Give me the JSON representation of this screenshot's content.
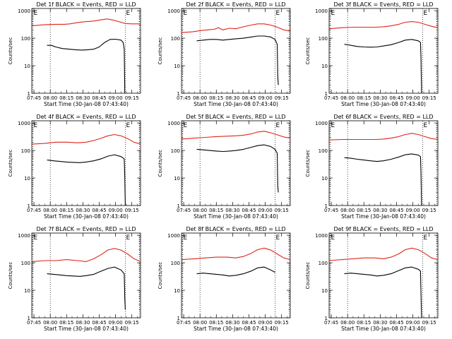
{
  "colors": {
    "events": "#000000",
    "lld": "#e0241b",
    "axes": "#000000"
  },
  "common": {
    "xlabel": "Start Time (30-Jan-08 07:43:40)",
    "ylabel": "Counts/sec",
    "x_ticks": [
      "07:45",
      "08:00",
      "08:15",
      "08:30",
      "08:45",
      "09:00",
      "09:15"
    ],
    "y_ticks": [
      "1",
      "10",
      "100",
      "1000"
    ],
    "xlim_minutes_after_0745": [
      -2,
      98
    ],
    "ylim": [
      1,
      1200
    ],
    "yscale": "log",
    "marker_label": "E",
    "dotted_lines_minutes_after_0745": [
      -1,
      15,
      84,
      97
    ]
  },
  "chart_data": [
    {
      "type": "line",
      "title": "Det 1f BLACK = Events, RED = LLD",
      "x_unit": "minutes after 07:45",
      "series": [
        {
          "color": "red",
          "x": [
            -2,
            10,
            20,
            28,
            33,
            40,
            48,
            55,
            62,
            67,
            72,
            78,
            84,
            90,
            98
          ],
          "values": [
            280,
            310,
            320,
            320,
            330,
            370,
            400,
            420,
            470,
            500,
            460,
            400,
            340,
            330,
            330
          ]
        },
        {
          "color": "black",
          "x": [
            12,
            16,
            20,
            26,
            32,
            38,
            44,
            50,
            55,
            60,
            65,
            70,
            75,
            80,
            82,
            83,
            83.5
          ],
          "values": [
            55,
            55,
            48,
            42,
            40,
            38,
            37,
            38,
            40,
            48,
            70,
            90,
            92,
            85,
            70,
            40,
            1
          ]
        }
      ]
    },
    {
      "type": "line",
      "title": "Det 2f BLACK = Events, RED = LLD",
      "x_unit": "minutes after 07:45",
      "series": [
        {
          "color": "red",
          "x": [
            -2,
            8,
            16,
            22,
            28,
            32,
            36,
            42,
            48,
            55,
            62,
            68,
            74,
            80,
            86,
            92,
            98
          ],
          "values": [
            160,
            170,
            190,
            200,
            210,
            240,
            200,
            230,
            220,
            260,
            300,
            330,
            330,
            300,
            250,
            200,
            180
          ]
        },
        {
          "color": "black",
          "x": [
            12,
            18,
            24,
            30,
            36,
            42,
            48,
            55,
            62,
            68,
            74,
            80,
            84,
            86,
            86.5,
            87
          ],
          "values": [
            80,
            85,
            90,
            90,
            85,
            90,
            95,
            100,
            110,
            120,
            120,
            110,
            90,
            60,
            4,
            2
          ]
        }
      ]
    },
    {
      "type": "line",
      "title": "Det 3f BLACK = Events, RED = LLD",
      "x_unit": "minutes after 07:45",
      "series": [
        {
          "color": "red",
          "x": [
            -2,
            10,
            20,
            30,
            40,
            48,
            55,
            62,
            68,
            74,
            80,
            86,
            92,
            98
          ],
          "values": [
            220,
            240,
            250,
            250,
            250,
            260,
            280,
            320,
            380,
            400,
            380,
            320,
            270,
            240
          ]
        },
        {
          "color": "black",
          "x": [
            12,
            18,
            24,
            30,
            36,
            42,
            48,
            55,
            62,
            68,
            74,
            80,
            82,
            82.5,
            83
          ],
          "values": [
            60,
            55,
            50,
            48,
            47,
            48,
            52,
            58,
            70,
            85,
            90,
            80,
            70,
            20,
            1
          ]
        }
      ]
    },
    {
      "type": "line",
      "title": "Det 4f BLACK = Events, RED = LLD",
      "x_unit": "minutes after 07:45",
      "series": [
        {
          "color": "red",
          "x": [
            -2,
            10,
            20,
            30,
            40,
            48,
            55,
            62,
            68,
            74,
            80,
            86,
            92,
            98
          ],
          "values": [
            170,
            180,
            200,
            200,
            190,
            200,
            230,
            280,
            340,
            380,
            340,
            270,
            200,
            170
          ]
        },
        {
          "color": "black",
          "x": [
            12,
            18,
            24,
            30,
            36,
            42,
            48,
            55,
            62,
            68,
            74,
            80,
            83,
            83.5,
            84
          ],
          "values": [
            45,
            42,
            40,
            38,
            37,
            36,
            38,
            42,
            50,
            62,
            70,
            60,
            50,
            10,
            1
          ]
        }
      ]
    },
    {
      "type": "line",
      "title": "Det 5f BLACK = Events, RED = LLD",
      "x_unit": "minutes after 07:45",
      "series": [
        {
          "color": "red",
          "x": [
            -2,
            10,
            20,
            30,
            40,
            48,
            55,
            62,
            68,
            74,
            80,
            86,
            92,
            98
          ],
          "values": [
            260,
            280,
            300,
            320,
            330,
            340,
            360,
            400,
            470,
            500,
            440,
            370,
            310,
            280
          ]
        },
        {
          "color": "black",
          "x": [
            12,
            18,
            24,
            30,
            36,
            42,
            48,
            55,
            62,
            68,
            74,
            80,
            84,
            86,
            86.5,
            87
          ],
          "values": [
            110,
            105,
            100,
            95,
            92,
            95,
            100,
            110,
            130,
            150,
            160,
            140,
            110,
            80,
            5,
            3
          ]
        }
      ]
    },
    {
      "type": "line",
      "title": "Det 6f BLACK = Events, RED = LLD",
      "x_unit": "minutes after 07:45",
      "series": [
        {
          "color": "red",
          "x": [
            -2,
            10,
            20,
            30,
            40,
            48,
            55,
            62,
            68,
            74,
            80,
            86,
            92,
            98
          ],
          "values": [
            240,
            250,
            250,
            250,
            250,
            260,
            280,
            320,
            380,
            420,
            380,
            320,
            270,
            250
          ]
        },
        {
          "color": "black",
          "x": [
            12,
            18,
            24,
            30,
            36,
            42,
            48,
            55,
            62,
            68,
            74,
            80,
            82,
            82.5,
            83
          ],
          "values": [
            55,
            52,
            48,
            45,
            42,
            40,
            42,
            48,
            58,
            70,
            75,
            68,
            60,
            15,
            1
          ]
        }
      ]
    },
    {
      "type": "line",
      "title": "Det 7f BLACK = Events, RED = LLD",
      "x_unit": "minutes after 07:45",
      "series": [
        {
          "color": "red",
          "x": [
            -2,
            10,
            20,
            30,
            40,
            48,
            55,
            62,
            68,
            74,
            80,
            86,
            92,
            98
          ],
          "values": [
            110,
            120,
            120,
            130,
            120,
            110,
            140,
            200,
            290,
            330,
            290,
            210,
            140,
            110
          ]
        },
        {
          "color": "black",
          "x": [
            12,
            18,
            24,
            30,
            36,
            42,
            48,
            55,
            62,
            68,
            74,
            80,
            83,
            83.5,
            84
          ],
          "values": [
            40,
            38,
            36,
            34,
            33,
            32,
            34,
            38,
            50,
            62,
            70,
            55,
            40,
            5,
            2
          ]
        }
      ]
    },
    {
      "type": "line",
      "title": "Det 8f BLACK = Events, RED = LLD",
      "x_unit": "minutes after 07:45",
      "series": [
        {
          "color": "red",
          "x": [
            -2,
            10,
            20,
            30,
            40,
            48,
            55,
            62,
            68,
            74,
            80,
            86,
            92,
            98
          ],
          "values": [
            130,
            140,
            150,
            160,
            160,
            150,
            170,
            220,
            300,
            340,
            290,
            210,
            150,
            130
          ]
        },
        {
          "color": "black",
          "x": [
            12,
            18,
            24,
            30,
            36,
            42,
            48,
            55,
            62,
            68,
            74,
            80,
            84
          ],
          "values": [
            40,
            42,
            40,
            38,
            36,
            33,
            35,
            40,
            50,
            65,
            70,
            55,
            45
          ]
        }
      ]
    },
    {
      "type": "line",
      "title": "Det 9f BLACK = Events, RED = LLD",
      "x_unit": "minutes after 07:45",
      "series": [
        {
          "color": "red",
          "x": [
            -2,
            10,
            20,
            30,
            40,
            48,
            55,
            62,
            68,
            74,
            80,
            86,
            92,
            98
          ],
          "values": [
            120,
            130,
            140,
            150,
            150,
            140,
            160,
            210,
            300,
            340,
            300,
            220,
            150,
            130
          ]
        },
        {
          "color": "black",
          "x": [
            12,
            18,
            24,
            30,
            36,
            42,
            48,
            55,
            62,
            68,
            74,
            80,
            82,
            82.5,
            83
          ],
          "values": [
            40,
            42,
            40,
            38,
            36,
            33,
            35,
            40,
            52,
            65,
            70,
            58,
            50,
            8,
            1
          ]
        }
      ]
    }
  ]
}
